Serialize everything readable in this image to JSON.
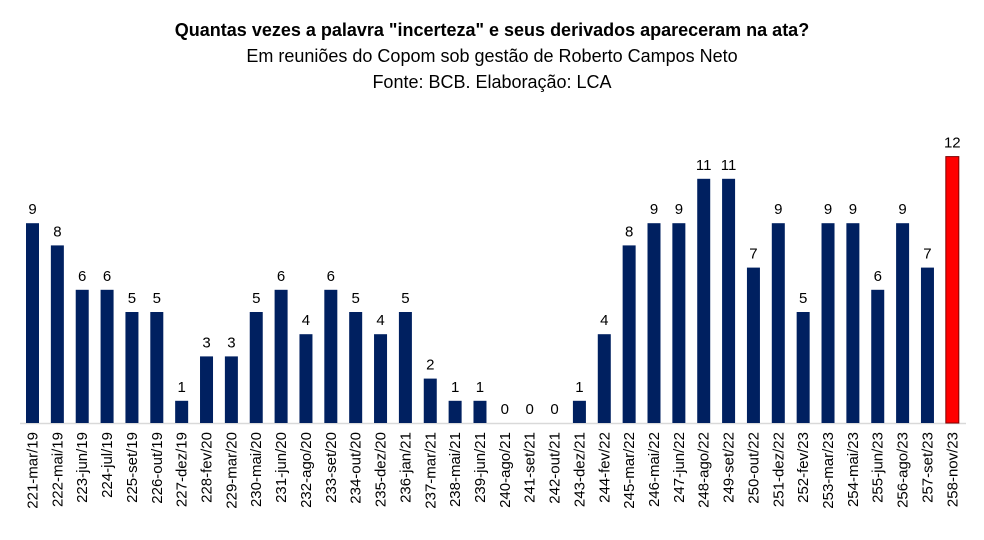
{
  "chart_data": {
    "type": "bar",
    "title": "Quantas vezes a palavra \"incerteza\" e seus derivados apareceram na ata?",
    "subtitle": "Em reuniões do Copom sob gestão de Roberto Campos Neto",
    "source": "Fonte: BCB. Elaboração: LCA",
    "categories": [
      "221-mar/19",
      "222-mai/19",
      "223-jun/19",
      "224-jul/19",
      "225-set/19",
      "226-out/19",
      "227-dez/19",
      "228-fev/20",
      "229-mar/20",
      "230-mai/20",
      "231-jun/20",
      "232-ago/20",
      "233-set/20",
      "234-out/20",
      "235-dez/20",
      "236-jan/21",
      "237-mar/21",
      "238-mai/21",
      "239-jun/21",
      "240-ago/21",
      "241-set/21",
      "242-out/21",
      "243-dez/21",
      "244-fev/22",
      "245-mar/22",
      "246-mai/22",
      "247-jun/22",
      "248-ago/22",
      "249-set/22",
      "250-out/22",
      "251-dez/22",
      "252-fev/23",
      "253-mar/23",
      "254-mai/23",
      "255-jun/23",
      "256-ago/23",
      "257-set/23",
      "258-nov/23"
    ],
    "values": [
      9,
      8,
      6,
      6,
      5,
      5,
      1,
      3,
      3,
      5,
      6,
      4,
      6,
      5,
      4,
      5,
      2,
      1,
      1,
      0,
      0,
      0,
      1,
      4,
      8,
      9,
      9,
      11,
      11,
      7,
      9,
      5,
      9,
      9,
      6,
      9,
      7,
      12
    ],
    "colors": {
      "default": "#002060",
      "highlight": "#FF0000"
    },
    "highlight_index": 37,
    "ylim": [
      0,
      12
    ],
    "grid": false,
    "data_labels": true
  }
}
